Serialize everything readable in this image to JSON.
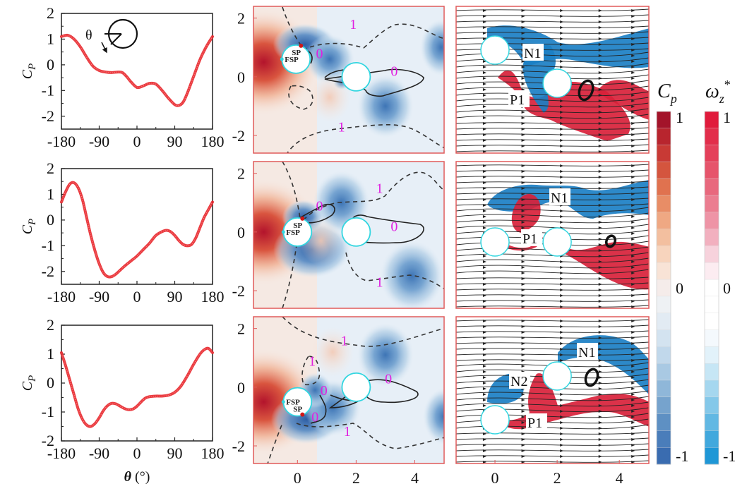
{
  "chart_data": [
    {
      "type": "line",
      "panel": "row1-col1",
      "ylabel": "C_P",
      "xlabel": "",
      "xlim": [
        -180,
        180
      ],
      "ylim": [
        -2.5,
        2
      ],
      "xticks": [
        "-180",
        "-90",
        "0",
        "90",
        "180"
      ],
      "yticks": [
        "2",
        "1",
        "0",
        "-1",
        "-2"
      ],
      "annotation": "θ",
      "series": [
        {
          "name": "Cp",
          "color": "#e8262b",
          "x": [
            -180,
            -165,
            -150,
            -135,
            -120,
            -105,
            -90,
            -75,
            -60,
            -45,
            -35,
            -25,
            -15,
            0,
            15,
            30,
            45,
            60,
            75,
            90,
            100,
            110,
            120,
            135,
            150,
            165,
            180
          ],
          "y": [
            1.1,
            1.15,
            1.0,
            0.7,
            0.3,
            -0.05,
            -0.22,
            -0.28,
            -0.3,
            -0.28,
            -0.3,
            -0.45,
            -0.65,
            -0.88,
            -0.82,
            -0.72,
            -0.75,
            -1.0,
            -1.3,
            -1.55,
            -1.58,
            -1.45,
            -1.1,
            -0.45,
            0.2,
            0.7,
            1.1
          ]
        }
      ]
    },
    {
      "type": "line",
      "panel": "row2-col1",
      "ylabel": "C_P",
      "xlabel": "",
      "xlim": [
        -180,
        180
      ],
      "ylim": [
        -2.5,
        2
      ],
      "xticks": [
        "-180",
        "-90",
        "0",
        "90",
        "180"
      ],
      "yticks": [
        "2",
        "1",
        "0",
        "-1",
        "-2"
      ],
      "series": [
        {
          "name": "Cp",
          "color": "#e8262b",
          "x": [
            -180,
            -170,
            -160,
            -150,
            -140,
            -130,
            -120,
            -110,
            -100,
            -90,
            -80,
            -70,
            -60,
            -50,
            -40,
            -30,
            -15,
            0,
            15,
            30,
            45,
            60,
            70,
            80,
            90,
            100,
            110,
            120,
            130,
            140,
            150,
            160,
            170,
            180
          ],
          "y": [
            0.7,
            1.1,
            1.4,
            1.45,
            1.25,
            0.8,
            0.1,
            -0.6,
            -1.2,
            -1.7,
            -2.05,
            -2.2,
            -2.2,
            -2.1,
            -1.95,
            -1.8,
            -1.6,
            -1.4,
            -1.15,
            -0.9,
            -0.6,
            -0.45,
            -0.4,
            -0.45,
            -0.6,
            -0.8,
            -0.95,
            -1.0,
            -0.95,
            -0.7,
            -0.3,
            0.1,
            0.4,
            0.7
          ]
        }
      ]
    },
    {
      "type": "line",
      "panel": "row3-col1",
      "ylabel": "C_P",
      "xlabel": "θ (°)",
      "xlim": [
        -180,
        180
      ],
      "ylim": [
        -2,
        2
      ],
      "xticks": [
        "-180",
        "-90",
        "0",
        "90",
        "180"
      ],
      "yticks": [
        "2",
        "1",
        "0",
        "-1",
        "-2"
      ],
      "series": [
        {
          "name": "Cp",
          "color": "#e8262b",
          "x": [
            -180,
            -170,
            -160,
            -150,
            -140,
            -130,
            -120,
            -110,
            -100,
            -90,
            -80,
            -70,
            -60,
            -50,
            -40,
            -30,
            -20,
            -10,
            0,
            10,
            20,
            30,
            45,
            60,
            75,
            90,
            105,
            120,
            135,
            150,
            160,
            170,
            180
          ],
          "y": [
            1.05,
            0.6,
            0.1,
            -0.4,
            -0.9,
            -1.25,
            -1.45,
            -1.5,
            -1.4,
            -1.2,
            -0.95,
            -0.78,
            -0.7,
            -0.72,
            -0.8,
            -0.88,
            -0.92,
            -0.9,
            -0.8,
            -0.65,
            -0.52,
            -0.47,
            -0.45,
            -0.45,
            -0.42,
            -0.32,
            -0.1,
            0.25,
            0.65,
            1.0,
            1.15,
            1.2,
            1.05
          ]
        }
      ]
    },
    {
      "type": "heatmap",
      "panel": "row1-col2",
      "quantity": "Cp",
      "xlim": [
        -1.5,
        5
      ],
      "ylim": [
        -2.6,
        2.4
      ],
      "yticks": [
        "2",
        "0",
        "-2"
      ],
      "markers": [
        "SP",
        "FSP"
      ],
      "contour_labels": [
        "1",
        "0",
        "0",
        "1"
      ]
    },
    {
      "type": "heatmap",
      "panel": "row2-col2",
      "quantity": "Cp",
      "xlim": [
        -1.5,
        5
      ],
      "ylim": [
        -2.6,
        2.4
      ],
      "yticks": [
        "2",
        "0",
        "-2"
      ],
      "markers": [
        "SP",
        "FSP"
      ],
      "contour_labels": [
        "1",
        "0",
        "0",
        "1"
      ]
    },
    {
      "type": "heatmap",
      "panel": "row3-col2",
      "quantity": "Cp",
      "xlim": [
        -1.5,
        5
      ],
      "ylim": [
        -2.6,
        2.4
      ],
      "xticks": [
        "0",
        "2",
        "4"
      ],
      "yticks": [
        "2",
        "0",
        "-2"
      ],
      "markers": [
        "FSP",
        "SP"
      ],
      "contour_labels": [
        "1",
        "1",
        "0",
        "0",
        "0",
        "1"
      ]
    },
    {
      "type": "heatmap",
      "panel": "row1-col3",
      "quantity": "ωz*",
      "labels": [
        "N1",
        "P1"
      ]
    },
    {
      "type": "heatmap",
      "panel": "row2-col3",
      "quantity": "ωz*",
      "labels": [
        "N1",
        "P1"
      ]
    },
    {
      "type": "heatmap",
      "panel": "row3-col3",
      "quantity": "ωz*",
      "xticks": [
        "0",
        "2",
        "4"
      ],
      "labels": [
        "N1",
        "N2",
        "P1"
      ]
    }
  ],
  "colorbars": [
    {
      "title": "C",
      "subscript": "p",
      "ticks": [
        "1",
        "0",
        "-1"
      ],
      "range": [
        -1,
        1
      ],
      "colors": [
        "#a3142a",
        "#b8252e",
        "#c83a35",
        "#d4553e",
        "#e0724f",
        "#e88d66",
        "#efa883",
        "#f3bf9f",
        "#f7d4bd",
        "#f8e3d6",
        "#f5ecea",
        "#eef1f4",
        "#e2ebf3",
        "#d3e3f0",
        "#c1d8eb",
        "#a9c9e3",
        "#8fb7d9",
        "#76a3cd",
        "#5e90c3",
        "#4a7dba",
        "#3a6cb0"
      ]
    },
    {
      "title": "ω",
      "subscript": "z",
      "superscript": "*",
      "ticks": [
        "1",
        "0",
        "-1"
      ],
      "range": [
        -1,
        1
      ],
      "colors": [
        "#e01b3c",
        "#e22e4b",
        "#e4405a",
        "#e6546b",
        "#e8687d",
        "#eb7d90",
        "#ee94a6",
        "#f2b0bf",
        "#f7d2dc",
        "#fcecf1",
        "#ffffff",
        "#ffffff",
        "#ffffff",
        "#f4f9fd",
        "#e2f2fa",
        "#c6e6f5",
        "#a5d7ef",
        "#84c8e9",
        "#62b8e3",
        "#41a8dd",
        "#1f97d6"
      ]
    }
  ]
}
